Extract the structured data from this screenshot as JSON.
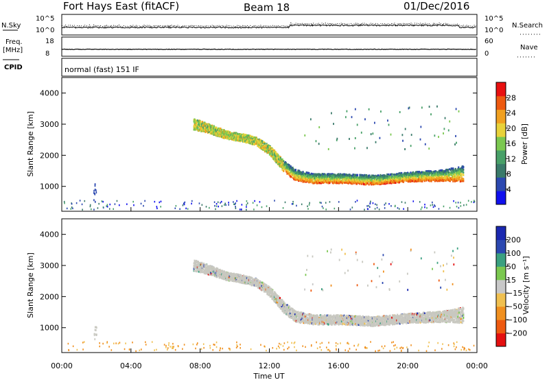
{
  "header": {
    "station": "Fort Hays East (fitACF)",
    "beam": "Beam 18",
    "date": "01/Dec/2016"
  },
  "strips": {
    "nsky_label": "N.Sky",
    "nsky_ticks": [
      "10^5",
      "10^0"
    ],
    "nsearch_label": "N.Search",
    "nsearch_ticks": [
      "10^5",
      "10^0"
    ],
    "freq_label": "Freq.",
    "freq_unit": "[MHz]",
    "freq_ticks": [
      "18",
      "8"
    ],
    "nave_label": "Nave",
    "nave_ticks": [
      "60",
      "0"
    ],
    "cpid_label": "CPID",
    "cpid_text": "normal (fast) 151 IF"
  },
  "colors": {
    "power": [
      "#1010ee",
      "#2b48b0",
      "#3a7a6a",
      "#48a068",
      "#7bc850",
      "#e8d23a",
      "#f0a020",
      "#ee5a10",
      "#e81010"
    ],
    "velocity": [
      "#e41010",
      "#ee5a10",
      "#f09020",
      "#f0c050",
      "#c8c8c8",
      "#7bc850",
      "#3aa080",
      "#2b48b0",
      "#1a28b0"
    ],
    "velocity_dominant": "#c8c8c0"
  },
  "chart_data": [
    {
      "type": "heatmap",
      "name": "power",
      "ylabel": "Slant Range [km]",
      "yticks": [
        1000,
        2000,
        3000,
        4000
      ],
      "ylim": [
        200,
        4500
      ],
      "colorbar": {
        "label": "Power [dB]",
        "ticks": [
          "28",
          "24",
          "20",
          "16",
          "12",
          "8",
          "4"
        ],
        "range": [
          0,
          32
        ]
      },
      "echo_band": {
        "time_hours": [
          7.6,
          8.5,
          9.5,
          10.5,
          11.2,
          12.0,
          12.8,
          13.5,
          14.5,
          16,
          18,
          20,
          22,
          23.2
        ],
        "range_km": [
          3000,
          2850,
          2650,
          2550,
          2450,
          2150,
          1650,
          1350,
          1250,
          1250,
          1200,
          1300,
          1350,
          1400
        ],
        "width_km": [
          350,
          300,
          250,
          250,
          250,
          300,
          350,
          350,
          300,
          300,
          300,
          300,
          350,
          500
        ]
      }
    },
    {
      "type": "heatmap",
      "name": "velocity",
      "ylabel": "Slant Range [km]",
      "yticks": [
        1000,
        2000,
        3000,
        4000
      ],
      "ylim": [
        200,
        4500
      ],
      "colorbar": {
        "label": "Velocity [m s⁻¹]",
        "ticks": [
          "200",
          "100",
          "50",
          "15",
          "−15",
          "−50",
          "−100",
          "−200"
        ]
      }
    }
  ],
  "xaxis": {
    "label": "Time UT",
    "ticks": [
      "00:00",
      "04:00",
      "08:00",
      "12:00",
      "16:00",
      "20:00",
      "00:00"
    ],
    "range_hours": [
      0,
      24
    ]
  }
}
